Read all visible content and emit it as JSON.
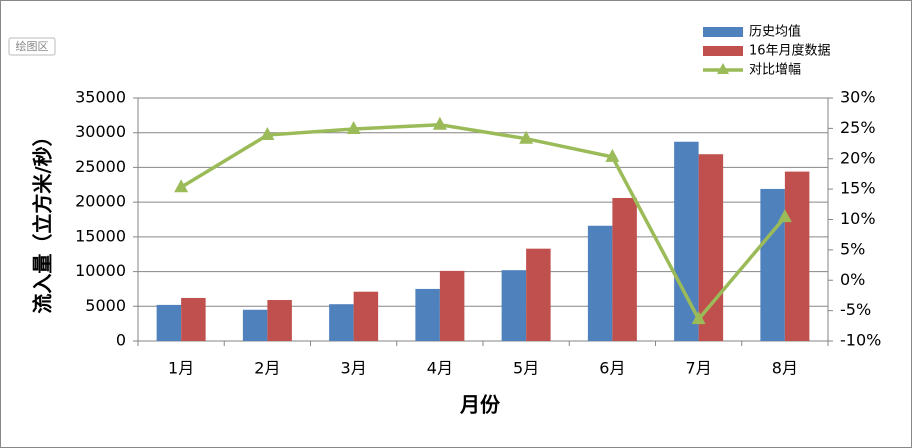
{
  "chart_data": {
    "type": "bar-line",
    "annotation": "绘图区",
    "x_label": "月份",
    "y_label": "流入量（立方米/秒）",
    "categories": [
      "1月",
      "2月",
      "3月",
      "4月",
      "5月",
      "6月",
      "7月",
      "8月"
    ],
    "series": [
      {
        "name": "历史均值",
        "color": "#4f81bd",
        "type": "bar",
        "values": [
          5200,
          4500,
          5300,
          7500,
          10200,
          16600,
          28700,
          21900
        ]
      },
      {
        "name": "16年月度数据",
        "color": "#c0504d",
        "type": "bar",
        "values": [
          6200,
          5900,
          7100,
          10100,
          13300,
          20600,
          26900,
          24400
        ]
      },
      {
        "name": "对比增幅",
        "color": "#9bbb59",
        "type": "line",
        "axis": "y2",
        "values": [
          15.3,
          23.9,
          24.9,
          25.6,
          23.3,
          20.3,
          -6.4,
          10.4
        ]
      }
    ],
    "ylim": [
      0,
      35000
    ],
    "yticks": [
      0,
      5000,
      10000,
      15000,
      20000,
      25000,
      30000,
      35000
    ],
    "y2lim": [
      -10,
      30
    ],
    "y2ticks": [
      {
        "value": -10,
        "label": "-10%"
      },
      {
        "value": -5,
        "label": "-5%"
      },
      {
        "value": 0,
        "label": "0%"
      },
      {
        "value": 5,
        "label": "5%"
      },
      {
        "value": 10,
        "label": "10%"
      },
      {
        "value": 15,
        "label": "15%"
      },
      {
        "value": 20,
        "label": "20%"
      },
      {
        "value": 25,
        "label": "25%"
      },
      {
        "value": 30,
        "label": "30%"
      }
    ],
    "grid": true,
    "legend": "top-right"
  }
}
